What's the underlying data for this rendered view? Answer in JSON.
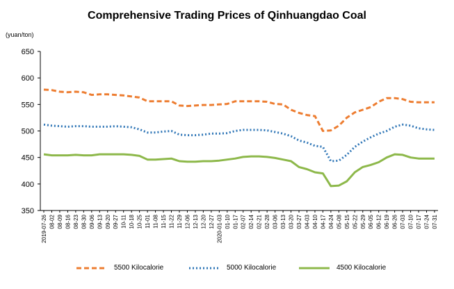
{
  "chart_data": {
    "type": "line",
    "title": "Comprehensive Trading Prices of Qinhuangdao Coal",
    "ylabel": "(yuan/ton)",
    "ylim": [
      350,
      650
    ],
    "yticks": [
      350,
      400,
      450,
      500,
      550,
      600,
      650
    ],
    "grid": false,
    "legend_position": "bottom",
    "categories": [
      "2019-07-26",
      "08-02",
      "08-09",
      "08-16",
      "08-23",
      "08-30",
      "09-06",
      "09-13",
      "09-20",
      "09-27",
      "10-11",
      "10-18",
      "10-25",
      "11-01",
      "11-08",
      "11-15",
      "11-22",
      "11-29",
      "12-06",
      "12-13",
      "12-20",
      "12-27",
      "2020-01-03",
      "01-10",
      "01-17",
      "02-07",
      "02-14",
      "02-21",
      "02-28",
      "03-06",
      "03-13",
      "03-20",
      "03-27",
      "04-03",
      "04-10",
      "04-17",
      "04-24",
      "05-08",
      "05-15",
      "05-22",
      "05-29",
      "06-05",
      "06-12",
      "06-19",
      "06-26",
      "07-03",
      "07-10",
      "07-17",
      "07-24",
      "07-31"
    ],
    "series": [
      {
        "name": "5500 Kilocalorie",
        "color": "#ED7D31",
        "style": "dashed",
        "values": [
          578,
          577,
          574,
          573,
          574,
          573,
          568,
          569,
          569,
          568,
          567,
          565,
          563,
          556,
          556,
          556,
          556,
          548,
          547,
          548,
          549,
          549,
          550,
          551,
          556,
          556,
          556,
          556,
          555,
          551,
          550,
          540,
          534,
          530,
          528,
          500,
          501,
          510,
          525,
          535,
          540,
          545,
          555,
          562,
          562,
          560,
          555,
          554,
          554,
          554
        ]
      },
      {
        "name": "5000 Kilocalorie",
        "color": "#2E75B6",
        "style": "dotted",
        "values": [
          512,
          510,
          509,
          508,
          509,
          509,
          508,
          508,
          508,
          509,
          508,
          507,
          503,
          497,
          497,
          499,
          500,
          493,
          492,
          492,
          493,
          495,
          495,
          496,
          500,
          502,
          502,
          502,
          501,
          498,
          495,
          490,
          482,
          478,
          472,
          470,
          443,
          444,
          455,
          470,
          480,
          488,
          495,
          500,
          508,
          512,
          510,
          505,
          503,
          502
        ]
      },
      {
        "name": "4500 Kilocalorie",
        "color": "#8DB84A",
        "style": "solid",
        "values": [
          456,
          454,
          454,
          454,
          455,
          454,
          454,
          456,
          456,
          456,
          456,
          455,
          453,
          446,
          446,
          447,
          448,
          443,
          442,
          442,
          443,
          443,
          444,
          446,
          448,
          451,
          452,
          452,
          451,
          449,
          446,
          443,
          432,
          428,
          422,
          420,
          396,
          397,
          405,
          422,
          432,
          436,
          441,
          450,
          456,
          455,
          450,
          448,
          448,
          448
        ]
      }
    ],
    "xticks_shown": [
      "2019-07-26",
      "08-02",
      "08-09",
      "08-16",
      "08-23",
      "08-30",
      "09-06",
      "09-13",
      "09-20",
      "09-27",
      "10-11",
      "10-18",
      "10-25",
      "11-01",
      "11-08",
      "11-15",
      "11-22",
      "11-29",
      "12-06",
      "12-13",
      "12-20",
      "12-27",
      "2020-01-03",
      "01-10",
      "01-17",
      "02-07",
      "02-14",
      "02-21",
      "02-28",
      "03-06",
      "03-13",
      "03-20",
      "03-27",
      "04-03",
      "04-10",
      "04-17",
      "04-24",
      "05-08",
      "05-15",
      "05-22",
      "05-29",
      "06-05",
      "06-12",
      "06-19",
      "06-26",
      "07-03",
      "07-10",
      "07-17",
      "07-24",
      "07-31"
    ]
  }
}
